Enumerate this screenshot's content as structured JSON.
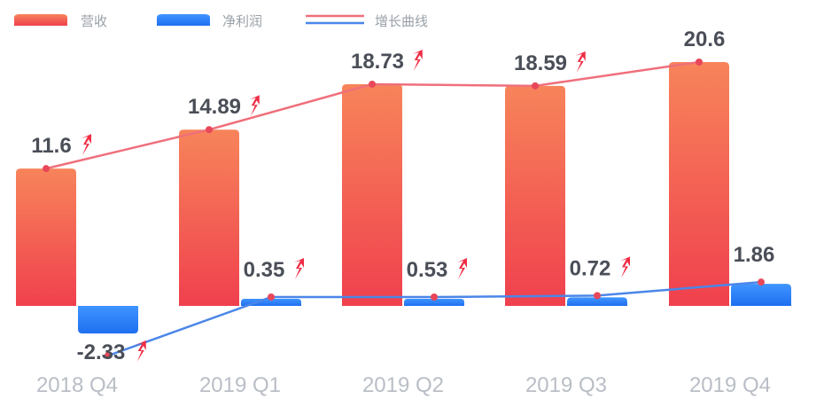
{
  "chart_data": {
    "type": "bar",
    "categories": [
      "2018 Q4",
      "2019 Q1",
      "2019 Q2",
      "2019 Q3",
      "2019 Q4"
    ],
    "series": [
      {
        "name": "营收",
        "values": [
          11.6,
          14.89,
          18.73,
          18.59,
          20.6
        ],
        "color": "#f0404e",
        "color_top": "#f7845a"
      },
      {
        "name": "净利润",
        "values": [
          -2.33,
          0.35,
          0.53,
          0.72,
          1.86
        ],
        "color": "#1f6ff0",
        "color_top": "#3f95ff"
      }
    ],
    "trend_legend": "增长曲线",
    "trend_colors": {
      "revenue": "#ef6f7b",
      "profit": "#4b86e8"
    },
    "value_labels": {
      "revenue": [
        "11.6",
        "14.89",
        "18.73",
        "18.59",
        "20.6"
      ],
      "profit": [
        "-2.33",
        "0.35",
        "0.53",
        "0.72",
        "1.86"
      ]
    },
    "up_arrow_icon": "red-upward-arrow-icon",
    "up_arrow_shown": {
      "revenue": [
        true,
        true,
        true,
        true,
        false
      ],
      "profit": [
        true,
        true,
        true,
        true,
        false
      ]
    },
    "ylim": [
      -3,
      22
    ],
    "grid": false,
    "legend_position": "top-left"
  }
}
